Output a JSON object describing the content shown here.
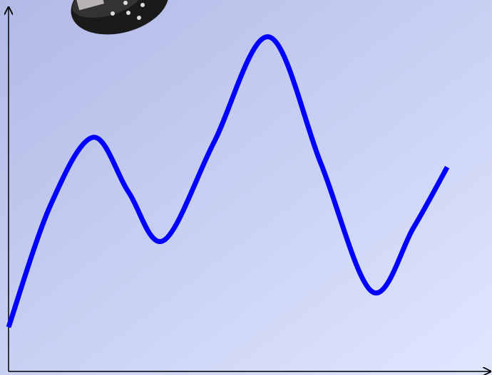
{
  "chart_data": {
    "type": "line",
    "x": [
      0,
      8.6,
      17.5,
      24.9,
      32.2,
      42.6,
      54,
      64.8,
      75.4,
      84,
      91
    ],
    "series": [
      {
        "color": "#0000ff",
        "values": [
          12.2,
          45.5,
          64.5,
          49.4,
          36.1,
          63.1,
          92.2,
          57.3,
          22,
          39.6,
          56.3
        ]
      }
    ],
    "xlim": [
      0,
      100
    ],
    "ylim": [
      0,
      100
    ]
  }
}
